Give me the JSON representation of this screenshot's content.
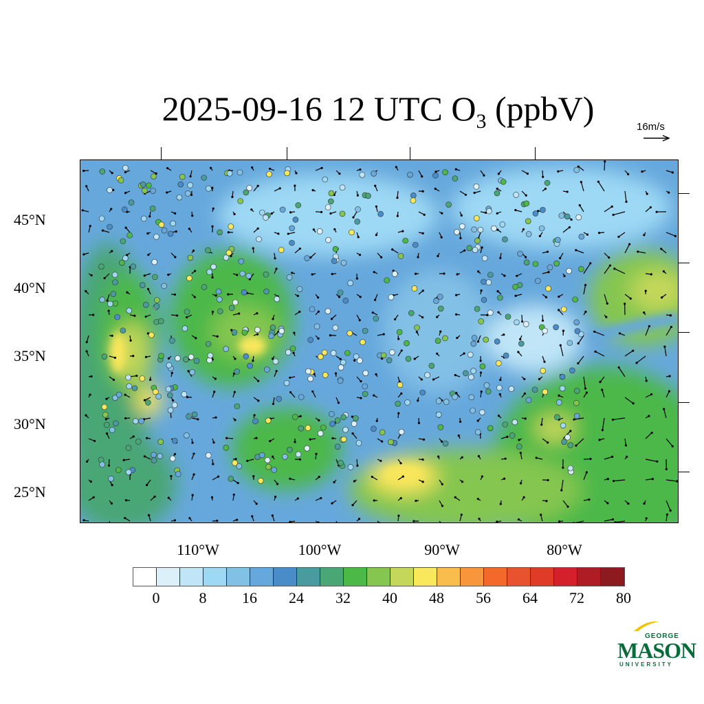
{
  "title": {
    "main": "2025-09-16 12 UTC O",
    "subscript": "3",
    "units": " (ppbV)"
  },
  "vector_key": {
    "label": "16m/s"
  },
  "map": {
    "region": "Continental United States",
    "lat_labels": [
      "45°N",
      "40°N",
      "35°N",
      "30°N",
      "25°N"
    ],
    "lon_labels": [
      "110°W",
      "100°W",
      "90°W",
      "80°W"
    ]
  },
  "colorbar": {
    "colors": [
      "#ffffff",
      "#dcf0fa",
      "#bfe5f7",
      "#9dd8f4",
      "#82c0e6",
      "#66a8dc",
      "#4a8cc8",
      "#4a9ba0",
      "#4aa675",
      "#4cb848",
      "#84c650",
      "#c4d75a",
      "#f9e75c",
      "#f8bd4c",
      "#f7963a",
      "#f4692b",
      "#e9522e",
      "#e03a28",
      "#d4202a",
      "#b01c24",
      "#8c1a1e"
    ],
    "labels": [
      "0",
      "8",
      "16",
      "24",
      "32",
      "40",
      "48",
      "56",
      "64",
      "72",
      "80"
    ]
  },
  "logo": {
    "line1": "GEORGE",
    "line2": "MASON",
    "line3": "UNIVERSITY"
  }
}
